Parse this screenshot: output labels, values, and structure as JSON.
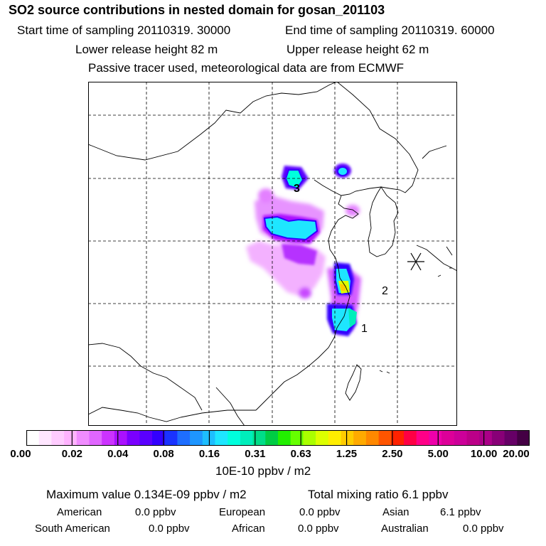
{
  "header": {
    "title": "SO2 source contributions in nested domain for gosan_201103",
    "start_time": "Start time of sampling 20110319. 30000",
    "end_time": "End time of sampling 20110319. 60000",
    "lower_release": "Lower release height   82 m",
    "upper_release": "Upper release height   62 m",
    "tracer_note": "Passive tracer used, meteorological data are from ECMWF"
  },
  "colors": {
    "bin_colors": [
      "#ffffff",
      "#ffe6ff",
      "#ffccff",
      "#ffb3ff",
      "#f08cff",
      "#e066ff",
      "#cc33ff",
      "#aa11ff",
      "#7a00ff",
      "#5a00ff",
      "#3300ff",
      "#1a33ff",
      "#1e6eff",
      "#1e96ff",
      "#1ebeff",
      "#1ee6ff",
      "#00ffdd",
      "#00eebb",
      "#00dd88",
      "#00cc44",
      "#22ee00",
      "#66ff00",
      "#aaff00",
      "#ddff00",
      "#ffee00",
      "#ffcc00",
      "#ffaa00",
      "#ff8800",
      "#ff5500",
      "#ff2200",
      "#ff0044",
      "#ff0088",
      "#ee00aa",
      "#dd0099",
      "#cc0099",
      "#bb0088",
      "#aa0088",
      "#880077",
      "#660066",
      "#440044"
    ],
    "map_line": "#000000"
  },
  "chart_data": {
    "type": "heatmap",
    "title": "SO2 source contributions in nested domain for gosan_201103",
    "colorbar": {
      "tick_labels": [
        "0.00",
        "0.02",
        "0.04",
        "0.08",
        "0.16",
        "0.31",
        "0.63",
        "1.25",
        "2.50",
        "5.00",
        "10.00",
        "20.00"
      ],
      "unit_label": "10E-10 ppbv / m2",
      "scale": "logarithmic bins"
    },
    "map": {
      "region": "East Asia (China, Korea, Japan, Taiwan)",
      "grid": "dashed",
      "receptor_marker": "asterisk at Gosan",
      "annotations": [
        "1",
        "2",
        "3"
      ]
    },
    "summary": {
      "maximum_value": "Maximum value  0.134E-09 ppbv / m2",
      "total_mixing_ratio": "Total mixing ratio       6.1 ppbv"
    },
    "regional_contributions": [
      {
        "region": "American",
        "value": "0.0 ppbv"
      },
      {
        "region": "European",
        "value": "0.0 ppbv"
      },
      {
        "region": "Asian",
        "value": "6.1 ppbv"
      },
      {
        "region": "South American",
        "value": "0.0 ppbv"
      },
      {
        "region": "African",
        "value": "0.0 ppbv"
      },
      {
        "region": "Australian",
        "value": "0.0 ppbv"
      }
    ]
  }
}
